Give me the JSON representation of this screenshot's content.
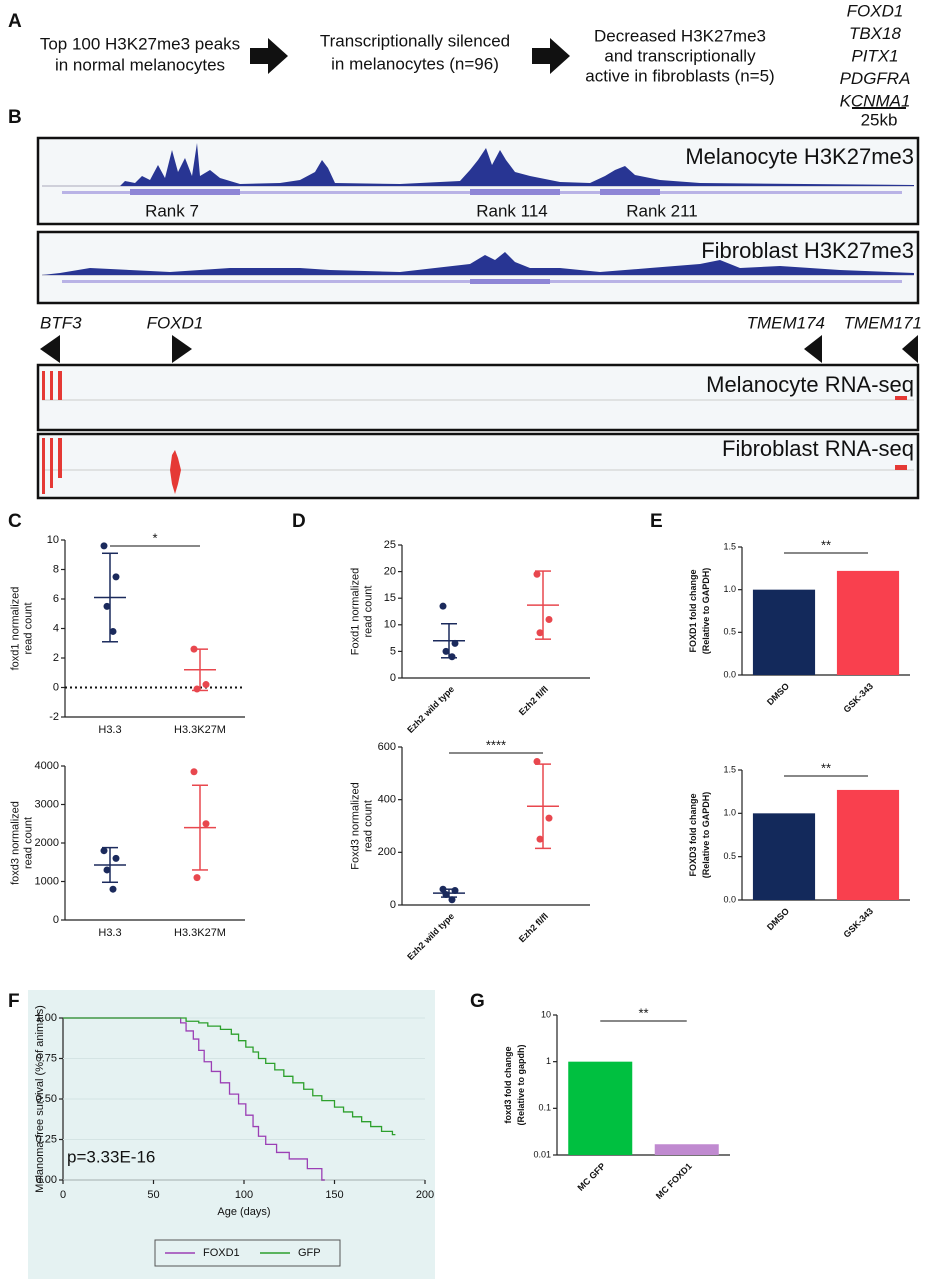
{
  "panels": [
    "A",
    "B",
    "C",
    "D",
    "E",
    "F",
    "G"
  ],
  "flow": {
    "steps": [
      [
        "Top 100 H3K27me3 peaks",
        "in normal melanocytes"
      ],
      [
        "Transcriptionally silenced",
        "in melanocytes (n=96)"
      ],
      [
        "Decreased H3K27me3",
        "and transcriptionally",
        "active in fibroblasts (n=5)"
      ]
    ],
    "genes": [
      "FOXD1",
      "TBX18",
      "PITX1",
      "PDGFRA",
      "KCNMA1"
    ]
  },
  "tracks": {
    "scale": "25kb",
    "labels": [
      "Melanocyte H3K27me3",
      "Fibroblast H3K27me3",
      "Melanocyte RNA-seq",
      "Fibroblast RNA-seq"
    ],
    "ranks": [
      "Rank 7",
      "Rank 114",
      "Rank 211"
    ],
    "genes": [
      "BTF3",
      "FOXD1",
      "TMEM174",
      "TMEM171"
    ]
  },
  "chart_data": [
    {
      "type": "strip",
      "ylabel": [
        "foxd1 normalized",
        "read count"
      ],
      "categories": [
        "H3.3",
        "H3.3K27M"
      ],
      "groups": [
        {
          "color": "#1b2a5c",
          "points": [
            9.6,
            7.5,
            5.5,
            3.8
          ],
          "mean": 6.1,
          "sd": 3.0
        },
        {
          "color": "#e8474e",
          "points": [
            2.6,
            0.2,
            -0.1
          ],
          "mean": 1.2,
          "sd": 1.4
        }
      ],
      "ylim": [
        -2,
        10
      ],
      "yticks": [
        -2,
        0,
        2,
        4,
        6,
        8,
        10
      ],
      "hline": 0,
      "significance": "*"
    },
    {
      "type": "strip",
      "ylabel": [
        "foxd3 normalized",
        "read count"
      ],
      "categories": [
        "H3.3",
        "H3.3K27M"
      ],
      "groups": [
        {
          "color": "#1b2a5c",
          "points": [
            1800,
            1600,
            1300,
            800
          ],
          "mean": 1430,
          "sd": 450
        },
        {
          "color": "#e8474e",
          "points": [
            3850,
            2500,
            1100
          ],
          "mean": 2400,
          "sd": 1100
        }
      ],
      "ylim": [
        0,
        4000
      ],
      "yticks": [
        0,
        1000,
        2000,
        3000,
        4000
      ]
    },
    {
      "type": "strip",
      "ylabel": [
        "Foxd1 normalized",
        "read count"
      ],
      "categories": [
        "Ezh2 wild type",
        "Ezh2 fl/fl"
      ],
      "groups": [
        {
          "color": "#1b2a5c",
          "points": [
            13.5,
            6.5,
            5.0,
            4.0
          ],
          "mean": 7.0,
          "sd": 3.2
        },
        {
          "color": "#e8474e",
          "points": [
            19.5,
            11.0,
            8.5
          ],
          "mean": 13.7,
          "sd": 6.4
        }
      ],
      "ylim": [
        0,
        25
      ],
      "yticks": [
        0,
        5,
        10,
        15,
        20,
        25
      ]
    },
    {
      "type": "strip",
      "ylabel": [
        "Foxd3 normalized",
        "read count"
      ],
      "categories": [
        "Ezh2 wild type",
        "Ezh2 fl/fl"
      ],
      "groups": [
        {
          "color": "#1b2a5c",
          "points": [
            60,
            55,
            40,
            20
          ],
          "mean": 45,
          "sd": 15
        },
        {
          "color": "#e8474e",
          "points": [
            545,
            330,
            250
          ],
          "mean": 375,
          "sd": 160
        }
      ],
      "ylim": [
        0,
        600
      ],
      "yticks": [
        0,
        200,
        400,
        600
      ],
      "significance": "****"
    },
    {
      "type": "bar",
      "ylabel": [
        "FOXD1 fold change",
        "(Relative to GAPDH)"
      ],
      "categories": [
        "DMSO",
        "GSK-343"
      ],
      "values": [
        1.0,
        1.22
      ],
      "colors": [
        "#13295b",
        "#f9404e"
      ],
      "ylim": [
        0,
        1.5
      ],
      "yticks": [
        {
          "value": 0,
          "label": "0.0"
        },
        0.5,
        {
          "value": 1,
          "label": "1.0"
        },
        1.5
      ],
      "significance": "**"
    },
    {
      "type": "bar",
      "ylabel": [
        "FOXD3 fold change",
        "(Relative to GAPDH)"
      ],
      "categories": [
        "DMSO",
        "GSK-343"
      ],
      "values": [
        1.0,
        1.27
      ],
      "colors": [
        "#13295b",
        "#f9404e"
      ],
      "ylim": [
        0,
        1.5
      ],
      "yticks": [
        {
          "value": 0,
          "label": "0.0"
        },
        0.5,
        {
          "value": 1,
          "label": "1.0"
        },
        1.5
      ],
      "significance": "**"
    },
    {
      "type": "km",
      "ylabel": [
        "Melanoma-free survival (% of animals)"
      ],
      "xlabel": "Age (days)",
      "xlim": [
        0,
        200
      ],
      "xticks": [
        0,
        50,
        100,
        150,
        200
      ],
      "ylim": [
        0,
        1
      ],
      "yticks": [
        {
          "value": 0,
          "label": "0.00"
        },
        0.25,
        {
          "value": 0.5,
          "label": "0.50"
        },
        0.75,
        {
          "value": 1,
          "label": "1.00"
        }
      ],
      "grid": true,
      "annotation": "p=3.33E-16",
      "legend": "bottom",
      "series": [
        {
          "name": "FOXD1",
          "color": "#9b3fb5",
          "x": [
            0,
            65,
            68,
            72,
            75,
            78,
            82,
            87,
            92,
            97,
            101,
            105,
            108,
            112,
            118,
            125,
            135,
            143
          ],
          "values": [
            1,
            0.97,
            0.92,
            0.87,
            0.8,
            0.73,
            0.67,
            0.6,
            0.53,
            0.47,
            0.4,
            0.33,
            0.27,
            0.22,
            0.17,
            0.13,
            0.07,
            0
          ]
        },
        {
          "name": "GFP",
          "color": "#2ca02c",
          "x": [
            0,
            68,
            75,
            80,
            87,
            93,
            97,
            101,
            105,
            108,
            112,
            117,
            122,
            127,
            133,
            138,
            143,
            150,
            155,
            160,
            165,
            170,
            176,
            182
          ],
          "values": [
            1,
            0.98,
            0.97,
            0.95,
            0.93,
            0.9,
            0.86,
            0.82,
            0.79,
            0.75,
            0.72,
            0.68,
            0.64,
            0.6,
            0.56,
            0.52,
            0.49,
            0.45,
            0.42,
            0.39,
            0.36,
            0.33,
            0.3,
            0.28
          ]
        }
      ]
    },
    {
      "type": "bar",
      "ylabel": [
        "foxd3 fold change",
        "(Relative to gapdh)"
      ],
      "categories": [
        "MC GFP",
        "MC FOXD1"
      ],
      "values": [
        1,
        0.017
      ],
      "colors": [
        "#00c040",
        "#c08ad0"
      ],
      "log_y": true,
      "ylim": [
        0.01,
        10
      ],
      "yticks": [
        0.01,
        0.1,
        1,
        10
      ],
      "significance": "**"
    }
  ]
}
